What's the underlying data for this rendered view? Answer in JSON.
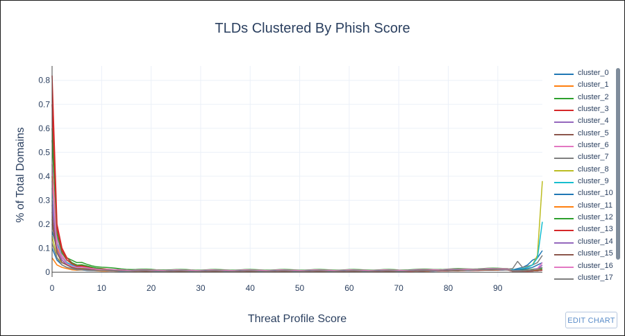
{
  "chart_data": {
    "type": "line",
    "title": "TLDs Clustered By Phish Score",
    "xlabel": "Threat Profile Score",
    "ylabel": "% of Total Domains",
    "xlim": [
      0,
      99
    ],
    "ylim": [
      -0.02,
      0.86
    ],
    "xticks": [
      0,
      10,
      20,
      30,
      40,
      50,
      60,
      70,
      80,
      90
    ],
    "yticks": [
      0,
      0.1,
      0.2,
      0.3,
      0.4,
      0.5,
      0.6,
      0.7,
      0.8
    ],
    "grid": true,
    "legend_position": "right",
    "series": [
      {
        "name": "cluster_0",
        "color": "#1f77b4",
        "start": [
          0.17,
          0.1,
          0.06,
          0.04,
          0.03,
          0.025
        ],
        "mid": 0.006,
        "end": [
          0.01,
          0.015,
          0.02,
          0.03,
          0.05,
          0.06,
          0.09
        ]
      },
      {
        "name": "cluster_1",
        "color": "#ff7f0e",
        "start": [
          0.06,
          0.03,
          0.02,
          0.015,
          0.01,
          0.008
        ],
        "mid": 0.005,
        "end": [
          0.005,
          0.005,
          0.005,
          0.006,
          0.006,
          0.008,
          0.01
        ]
      },
      {
        "name": "cluster_2",
        "color": "#2ca02c",
        "start": [
          0.55,
          0.15,
          0.09,
          0.06,
          0.05,
          0.04
        ],
        "mid": 0.01,
        "end": [
          0.008,
          0.008,
          0.01,
          0.01,
          0.012,
          0.015,
          0.02
        ]
      },
      {
        "name": "cluster_3",
        "color": "#d62728",
        "start": [
          0.82,
          0.2,
          0.1,
          0.06,
          0.04,
          0.03
        ],
        "mid": 0.004,
        "end": [
          0.004,
          0.004,
          0.004,
          0.004,
          0.005,
          0.006,
          0.008
        ]
      },
      {
        "name": "cluster_4",
        "color": "#9467bd",
        "start": [
          0.3,
          0.12,
          0.07,
          0.04,
          0.03,
          0.02
        ],
        "mid": 0.005,
        "end": [
          0.005,
          0.005,
          0.006,
          0.006,
          0.008,
          0.012,
          0.03
        ]
      },
      {
        "name": "cluster_5",
        "color": "#8c564b",
        "start": [
          0.25,
          0.1,
          0.05,
          0.03,
          0.02,
          0.015
        ],
        "mid": 0.004,
        "end": [
          0.004,
          0.004,
          0.004,
          0.005,
          0.005,
          0.006,
          0.008
        ]
      },
      {
        "name": "cluster_6",
        "color": "#e377c2",
        "start": [
          0.45,
          0.14,
          0.07,
          0.04,
          0.03,
          0.02
        ],
        "mid": 0.008,
        "end": [
          0.006,
          0.006,
          0.006,
          0.008,
          0.008,
          0.01,
          0.02
        ]
      },
      {
        "name": "cluster_7",
        "color": "#7f7f7f",
        "start": [
          0.2,
          0.08,
          0.05,
          0.03,
          0.02,
          0.015
        ],
        "mid": 0.006,
        "end": [
          0.015,
          0.045,
          0.02,
          0.025,
          0.03,
          0.04,
          0.07
        ]
      },
      {
        "name": "cluster_8",
        "color": "#bcbd22",
        "start": [
          0.15,
          0.06,
          0.04,
          0.03,
          0.02,
          0.015
        ],
        "mid": 0.005,
        "end": [
          0.01,
          0.01,
          0.015,
          0.02,
          0.03,
          0.07,
          0.38
        ]
      },
      {
        "name": "cluster_9",
        "color": "#17becf",
        "start": [
          0.35,
          0.12,
          0.06,
          0.04,
          0.03,
          0.02
        ],
        "mid": 0.006,
        "end": [
          0.01,
          0.01,
          0.015,
          0.02,
          0.03,
          0.06,
          0.21
        ]
      },
      {
        "name": "cluster_10",
        "color": "#1f77b4",
        "start": [
          0.1,
          0.05,
          0.03,
          0.02,
          0.015,
          0.01
        ],
        "mid": 0.004,
        "end": [
          0.008,
          0.01,
          0.012,
          0.015,
          0.02,
          0.03,
          0.04
        ]
      },
      {
        "name": "cluster_11",
        "color": "#ff7f0e",
        "start": [
          0.4,
          0.1,
          0.05,
          0.03,
          0.02,
          0.015
        ],
        "mid": 0.004,
        "end": [
          0.004,
          0.004,
          0.005,
          0.005,
          0.006,
          0.008,
          0.01
        ]
      },
      {
        "name": "cluster_12",
        "color": "#2ca02c",
        "start": [
          0.6,
          0.16,
          0.08,
          0.05,
          0.04,
          0.03
        ],
        "mid": 0.006,
        "end": [
          0.006,
          0.006,
          0.008,
          0.008,
          0.01,
          0.012,
          0.015
        ]
      },
      {
        "name": "cluster_13",
        "color": "#d62728",
        "start": [
          0.7,
          0.18,
          0.09,
          0.05,
          0.035,
          0.025
        ],
        "mid": 0.004,
        "end": [
          0.004,
          0.004,
          0.004,
          0.005,
          0.005,
          0.006,
          0.008
        ]
      },
      {
        "name": "cluster_14",
        "color": "#9467bd",
        "start": [
          0.28,
          0.09,
          0.05,
          0.03,
          0.02,
          0.015
        ],
        "mid": 0.005,
        "end": [
          0.005,
          0.005,
          0.006,
          0.008,
          0.01,
          0.015,
          0.02
        ]
      },
      {
        "name": "cluster_15",
        "color": "#8c564b",
        "start": [
          0.22,
          0.08,
          0.04,
          0.03,
          0.02,
          0.015
        ],
        "mid": 0.004,
        "end": [
          0.004,
          0.004,
          0.004,
          0.005,
          0.005,
          0.006,
          0.01
        ]
      },
      {
        "name": "cluster_16",
        "color": "#e377c2",
        "start": [
          0.38,
          0.11,
          0.06,
          0.035,
          0.025,
          0.02
        ],
        "mid": 0.007,
        "end": [
          0.006,
          0.006,
          0.007,
          0.008,
          0.01,
          0.015,
          0.04
        ]
      },
      {
        "name": "cluster_17",
        "color": "#7f7f7f",
        "start": [
          0.12,
          0.06,
          0.03,
          0.02,
          0.015,
          0.01
        ],
        "mid": 0.005,
        "end": [
          0.006,
          0.006,
          0.007,
          0.008,
          0.01,
          0.012,
          0.02
        ]
      }
    ]
  },
  "ui": {
    "edit_chart_label": "EDIT CHART"
  }
}
